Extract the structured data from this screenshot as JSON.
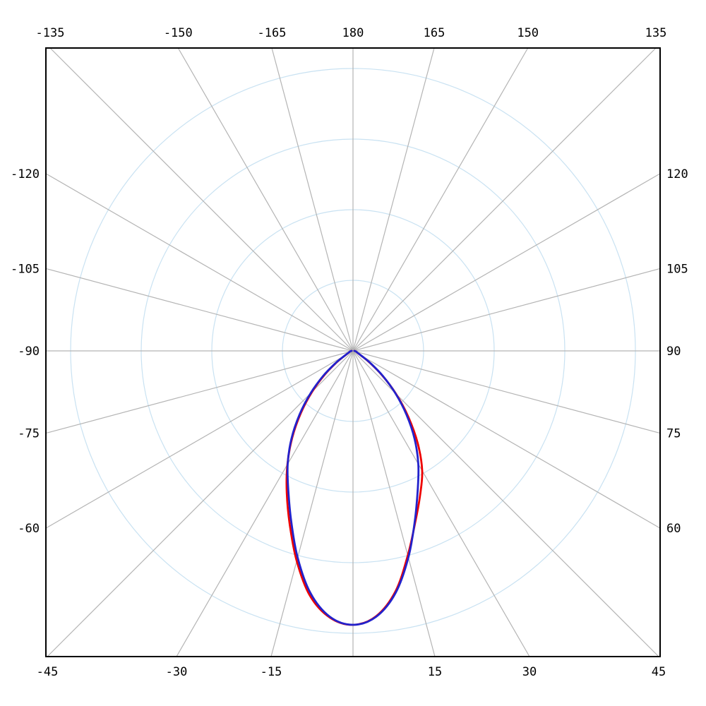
{
  "chart_data": {
    "type": "line",
    "variant": "polar_luminous_intensity_distribution",
    "title": "",
    "orientation": "0_degrees_at_bottom_center",
    "angle_unit": "degrees",
    "angle_gridline_step_deg": 15,
    "angle_axis_labels": {
      "top": [
        "-135",
        "-150",
        "-165",
        "180",
        "165",
        "150",
        "135"
      ],
      "bottom": [
        "-45",
        "-30",
        "-15",
        "15",
        "30",
        "45"
      ],
      "left": [
        "-120",
        "-105",
        "-90",
        "-75",
        "-60"
      ],
      "right": [
        "120",
        "105",
        "90",
        "75",
        "60"
      ]
    },
    "radial_gridlines": {
      "count": 4,
      "tick_labels": [],
      "style": "concentric-circles"
    },
    "legend": "none",
    "angles_deg": [
      -90,
      -85,
      -80,
      -75,
      -70,
      -65,
      -60,
      -55,
      -50,
      -45,
      -40,
      -35,
      -30,
      -25,
      -20,
      -15,
      -10,
      -5,
      0,
      5,
      10,
      15,
      20,
      25,
      30,
      35,
      40,
      45,
      50,
      55,
      60,
      65,
      70,
      75,
      80,
      85,
      90
    ],
    "series": [
      {
        "name": "red-curve",
        "color": "#ee0000",
        "values_pct_of_peak": [
          0.5,
          0.8,
          1.0,
          1.3,
          1.5,
          2.0,
          3.4,
          7.2,
          13.4,
          21.1,
          29.6,
          38.7,
          47.9,
          57.2,
          67.5,
          79.4,
          90.7,
          97.7,
          100,
          97.2,
          89.2,
          77.3,
          66.5,
          58.0,
          50.5,
          41.2,
          31.4,
          22.2,
          13.9,
          7.2,
          3.4,
          2.0,
          1.5,
          1.3,
          1.0,
          0.8,
          0.5
        ]
      },
      {
        "name": "blue-curve",
        "color": "#2222cc",
        "values_pct_of_peak": [
          0.5,
          0.8,
          1.0,
          1.3,
          1.5,
          2.1,
          3.6,
          7.7,
          14.2,
          21.9,
          30.4,
          39.2,
          47.7,
          55.9,
          66.0,
          78.1,
          89.7,
          97.4,
          100,
          97.4,
          89.7,
          78.1,
          66.0,
          55.9,
          47.7,
          39.2,
          30.4,
          21.9,
          14.2,
          7.7,
          3.6,
          2.1,
          1.5,
          1.3,
          1.0,
          0.8,
          0.5
        ]
      }
    ],
    "colors": {
      "radial_circle_gridline": "#c9e2f2",
      "angle_ray_gridline": "#b4b4b4",
      "plot_border": "#000000",
      "label_text": "#000000",
      "background": "#ffffff"
    }
  }
}
